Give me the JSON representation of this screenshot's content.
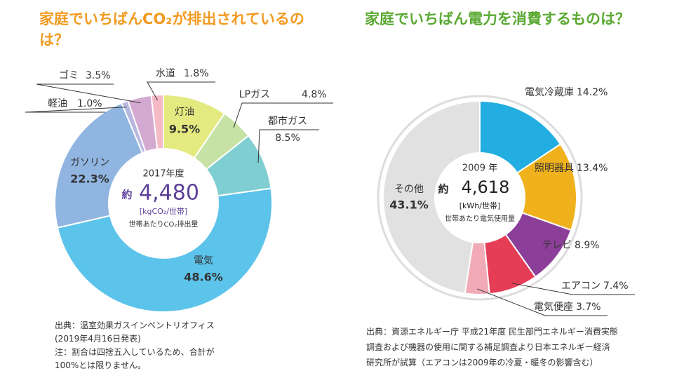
{
  "chart_data": [
    {
      "type": "donut",
      "title": "家庭でいちばんCO₂が排出されているのは？",
      "categories": [
        "灯油",
        "LPガス",
        "都市ガス",
        "電気",
        "ガソリン",
        "軽油",
        "ゴミ",
        "水道"
      ],
      "values": [
        9.5,
        4.8,
        8.5,
        48.6,
        22.3,
        1.0,
        3.5,
        1.8
      ],
      "value_labels": [
        "9.5%",
        "4.8%",
        "8.5%",
        "48.6%",
        "22.3%",
        "1.0%",
        "3.5%",
        "1.8%"
      ],
      "colors": [
        "#e4ea7f",
        "#c7e2a5",
        "#7fcfd2",
        "#5cc3eb",
        "#90b5e1",
        "#b8b7e1",
        "#d4a9d1",
        "#f5bac5"
      ],
      "center": {
        "year": "2017年度",
        "prefix": "約",
        "total": "4,480",
        "unit": "[kgCO₂/世帯]",
        "caption": "世帯あたりCO₂排出量"
      },
      "notes": [
        "出典：温室効果ガスインベントリオフィス",
        "(2019年4月16日発表)",
        "注：割合は四捨五入しているため、合計が",
        "100%とは限りません。"
      ]
    },
    {
      "type": "donut",
      "title": "家庭でいちばん電力を消費するものは？",
      "categories": [
        "電気冷蔵庫",
        "照明器具",
        "テレビ",
        "エアコン",
        "電気便座",
        "その他"
      ],
      "values": [
        14.2,
        13.4,
        8.9,
        7.4,
        3.7,
        43.1
      ],
      "value_labels": [
        "14.2%",
        "13.4%",
        "8.9%",
        "7.4%",
        "3.7%",
        "43.1%"
      ],
      "colors": [
        "#23aee1",
        "#efb21d",
        "#8c3f99",
        "#e63d56",
        "#f2abb6",
        "#e1e1e1"
      ],
      "center": {
        "year": "2009 年",
        "prefix": "約",
        "total": "4,618",
        "unit": "[kWh/世帯]",
        "caption": "世帯あたり電気使用量"
      },
      "notes": [
        "出典：資源エネルギー庁 平成21年度 民生部門エネルギー消費実態",
        "調査および機器の使用に関する補足調査より日本エネルギー経済",
        "研究所が試算（エアコンは2009年の冷夏・暖冬の影響含む）"
      ]
    }
  ]
}
